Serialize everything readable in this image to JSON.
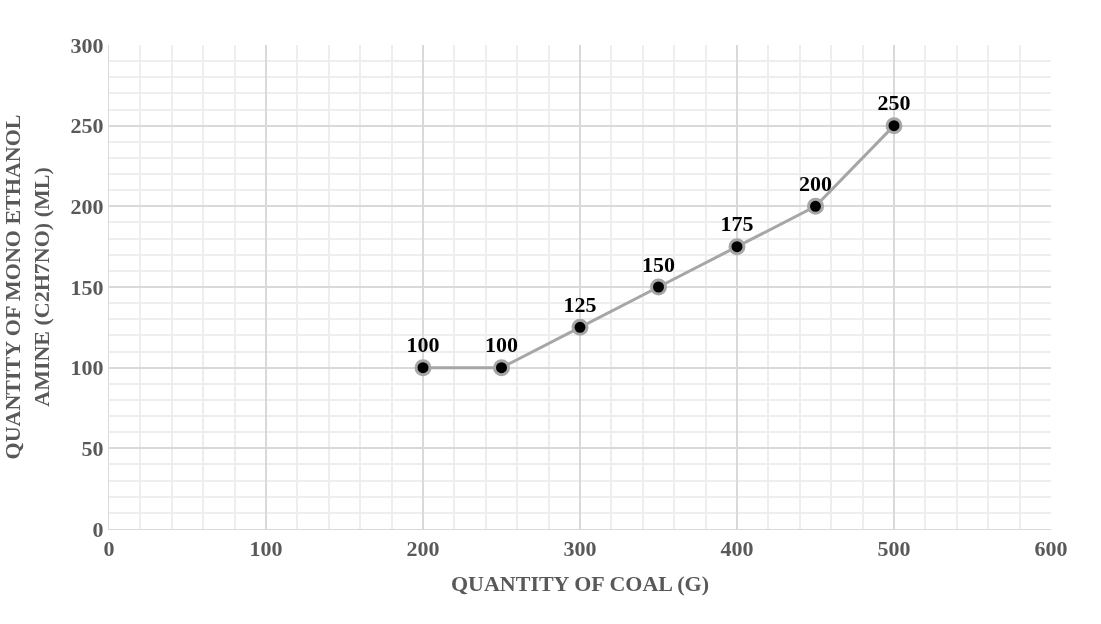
{
  "chart_data": {
    "type": "line",
    "xlabel": "QUANTITY OF COAL (G)",
    "ylabel": "QUANTITY OF MONO ETHANOL\nAMINE (C2H7NO) (ML)",
    "x": [
      200,
      250,
      300,
      350,
      400,
      450,
      500
    ],
    "series": [
      {
        "color": "#000000",
        "values": [
          100,
          100,
          125,
          150,
          175,
          200,
          250
        ]
      }
    ],
    "xlim": [
      0,
      600
    ],
    "xticks": [
      0,
      100,
      200,
      300,
      400,
      500,
      600
    ],
    "ylim": [
      0,
      300
    ],
    "yticks": [
      0,
      50,
      100,
      150,
      200,
      250,
      300
    ],
    "grid": true,
    "marker": "circle",
    "line_style": "solid",
    "data_labels": true,
    "legend": false
  }
}
